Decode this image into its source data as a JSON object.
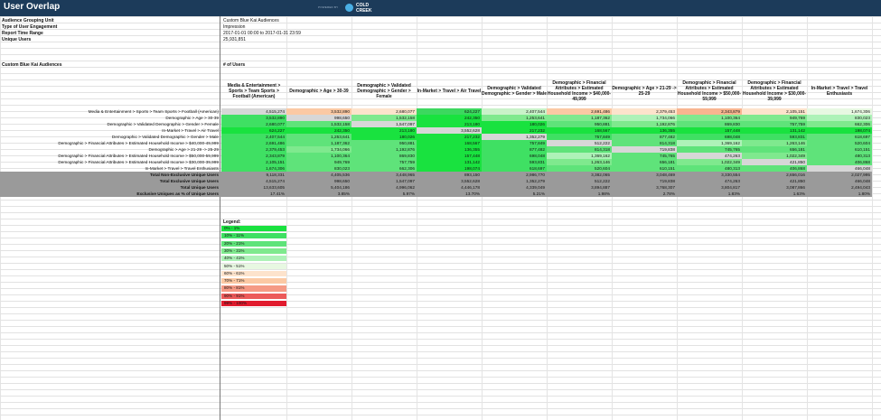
{
  "window": {
    "title": "User Overlap",
    "powered_by": "POWERED BY",
    "brand_line1": "COLD",
    "brand_line2": "CREEK"
  },
  "meta": [
    {
      "label": "Audience Grouping Unit",
      "value": "Custom Blue Kai Audiences"
    },
    {
      "label": "Type of User Engagement",
      "value": "Impression"
    },
    {
      "label": "Report Time Range",
      "value": "2017-01-01 00:00 to 2017-01-31 23:59"
    },
    {
      "label": "Unique Users",
      "value": "25,931,851"
    }
  ],
  "section": {
    "audiences_label": "Custom Blue Kai Audiences",
    "users_label": "# of Users"
  },
  "columns": [
    "Media & Entertainment > Sports > Team Sports > Football (American)",
    "Demographic > Age > 30-39",
    "Demographic > Validated Demographic > Gender > Female",
    "In-Market > Travel > Air Travel",
    "Demographic > Validated Demographic > Gender > Male",
    "Demographic > Financial Attributes > Estimated Household Income > $40,000-49,999",
    "Demographic > Age > 21-29 -> 25-29",
    "Demographic > Financial Attributes > Estimated Household Income > $50,000-59,999",
    "Demographic > Financial Attributes > Estimated Household Income > $30,000-39,999",
    "In-Market > Travel > Travel Enthusiasts"
  ],
  "rows": [
    {
      "label": "Media & Entertainment > Sports > Team Sports > Football (American)",
      "values": [
        "4,515,274",
        "3,532,890",
        "2,680,077",
        "624,227",
        "2,407,544",
        "2,691,486",
        "2,379,453",
        "2,343,879",
        "2,105,151",
        "1,674,306"
      ],
      "colors": [
        "#d7d7d7",
        "#fbc9a4",
        "#fde3cc",
        "#3cd85f",
        "#c9f2c9",
        "#fbc9a4",
        "#fde3cc",
        "#f8b590",
        "#fde3cc",
        "#e8f8e2"
      ]
    },
    {
      "label": "Demographic > Age > 30-39",
      "values": [
        "3,532,890",
        "998,650",
        "1,532,158",
        "242,350",
        "1,253,641",
        "1,187,362",
        "1,734,066",
        "1,100,364",
        "949,769",
        "830,023"
      ],
      "colors": [
        "#3fe063",
        "#d7d7d7",
        "#7fe98e",
        "#19e23f",
        "#7fe98e",
        "#7fe98e",
        "#aef2b8",
        "#7fe98e",
        "#7fe98e",
        "#aef2b8"
      ]
    },
    {
      "label": "Demographic > Validated Demographic > Gender > Female",
      "values": [
        "2,680,077",
        "1,532,158",
        "1,547,097",
        "213,180",
        "180,026",
        "950,881",
        "1,192,876",
        "869,830",
        "757,759",
        "662,306"
      ],
      "colors": [
        "#3fe063",
        "#5fe37a",
        "#d7d7d7",
        "#19e23f",
        "#19e23f",
        "#5fe37a",
        "#7fe98e",
        "#5fe37a",
        "#5fe37a",
        "#7fe98e"
      ]
    },
    {
      "label": "In-Market > Travel > Air Travel",
      "values": [
        "624,227",
        "242,350",
        "213,180",
        "3,552,628",
        "217,232",
        "168,567",
        "136,355",
        "157,448",
        "131,142",
        "198,074"
      ],
      "colors": [
        "#19e23f",
        "#19e23f",
        "#19e23f",
        "#d7d7d7",
        "#19e23f",
        "#19e23f",
        "#19e23f",
        "#19e23f",
        "#19e23f",
        "#19e23f"
      ]
    },
    {
      "label": "Demographic > Validated Demographic > Gender > Male",
      "values": [
        "2,407,544",
        "1,253,641",
        "180,026",
        "217,232",
        "1,352,279",
        "757,849",
        "877,482",
        "698,048",
        "593,831",
        "618,697"
      ],
      "colors": [
        "#3fe063",
        "#5fe37a",
        "#19e23f",
        "#19e23f",
        "#d7d7d7",
        "#3fe063",
        "#5fe37a",
        "#3fe063",
        "#3fe063",
        "#5fe37a"
      ]
    },
    {
      "label": "Demographic > Financial Attributes > Estimated Household Income > $40,000-49,999",
      "values": [
        "2,691,486",
        "1,187,362",
        "950,881",
        "168,567",
        "757,849",
        "512,222",
        "814,318",
        "1,369,162",
        "1,263,146",
        "520,604"
      ],
      "colors": [
        "#3fe063",
        "#5fe37a",
        "#5fe37a",
        "#19e23f",
        "#3fe063",
        "#d7d7d7",
        "#5fe37a",
        "#aef2b8",
        "#7fe98e",
        "#5fe37a"
      ]
    },
    {
      "label": "Demographic > Age > 21-29 -> 25-29",
      "values": [
        "2,379,453",
        "1,734,066",
        "1,192,876",
        "136,355",
        "877,482",
        "814,318",
        "719,838",
        "745,765",
        "656,181",
        "610,151"
      ],
      "colors": [
        "#3fe063",
        "#7fe98e",
        "#5fe37a",
        "#19e23f",
        "#3fe063",
        "#5fe37a",
        "#d7d7d7",
        "#5fe37a",
        "#5fe37a",
        "#5fe37a"
      ]
    },
    {
      "label": "Demographic > Financial Attributes > Estimated Household Income > $50,000-59,999",
      "values": [
        "2,343,879",
        "1,100,364",
        "869,830",
        "157,448",
        "698,048",
        "1,369,162",
        "745,765",
        "474,263",
        "1,022,349",
        "480,313"
      ],
      "colors": [
        "#3fe063",
        "#5fe37a",
        "#5fe37a",
        "#19e23f",
        "#3fe063",
        "#aef2b8",
        "#5fe37a",
        "#d7d7d7",
        "#7fe98e",
        "#5fe37a"
      ]
    },
    {
      "label": "Demographic > Financial Attributes > Estimated Household Income > $30,000-39,999",
      "values": [
        "2,105,151",
        "949,769",
        "757,759",
        "131,142",
        "593,831",
        "1,263,146",
        "656,181",
        "1,022,349",
        "421,850",
        "406,868"
      ],
      "colors": [
        "#3fe063",
        "#5fe37a",
        "#5fe37a",
        "#19e23f",
        "#3fe063",
        "#7fe98e",
        "#5fe37a",
        "#7fe98e",
        "#d7d7d7",
        "#5fe37a"
      ]
    },
    {
      "label": "In-Market > Travel > Travel Enthusiasts",
      "values": [
        "1,674,306",
        "830,023",
        "662,306",
        "198,074",
        "618,697",
        "520,604",
        "610,151",
        "480,313",
        "406,868",
        "466,048"
      ],
      "colors": [
        "#3fe063",
        "#5fe37a",
        "#5fe37a",
        "#19e23f",
        "#3fe063",
        "#5fe37a",
        "#5fe37a",
        "#5fe37a",
        "#5fe37a",
        "#d7d7d7"
      ]
    }
  ],
  "summary": [
    {
      "label": "Total Non-Exclusive Unique Users",
      "values": [
        "9,118,331",
        "4,405,536",
        "3,448,965",
        "893,150",
        "2,986,770",
        "3,382,065",
        "3,048,469",
        "3,330,554",
        "2,656,016",
        "2,027,995"
      ]
    },
    {
      "label": "Total Exclusive Unique Users",
      "values": [
        "4,515,274",
        "998,650",
        "1,547,097",
        "3,552,628",
        "1,352,279",
        "512,222",
        "719,838",
        "474,263",
        "421,850",
        "466,048"
      ]
    },
    {
      "label": "Total Unique Users",
      "values": [
        "13,633,605",
        "5,404,186",
        "4,996,062",
        "4,446,178",
        "4,339,049",
        "3,894,887",
        "3,768,307",
        "3,804,817",
        "3,087,866",
        "2,494,043"
      ]
    },
    {
      "label": "Exclusive Uniques as % of Unique Users",
      "values": [
        "17.41%",
        "3.85%",
        "5.97%",
        "13.70%",
        "5.21%",
        "1.98%",
        "2.78%",
        "1.83%",
        "1.63%",
        "1.80%"
      ]
    }
  ],
  "legend": {
    "title": "Legend:",
    "items": [
      {
        "label": "0% - 1%",
        "color": "#19e23f"
      },
      {
        "label": "10% - 11%",
        "color": "#3fe063"
      },
      {
        "label": "20% - 21%",
        "color": "#5fe37a"
      },
      {
        "label": "30% - 31%",
        "color": "#7fe98e"
      },
      {
        "label": "40% - 41%",
        "color": "#aef2b8"
      },
      {
        "label": "50% - 51%",
        "color": "#e8f8e2"
      },
      {
        "label": "60% - 61%",
        "color": "#fde3cc"
      },
      {
        "label": "70% - 71%",
        "color": "#fbc9a4"
      },
      {
        "label": "80% - 81%",
        "color": "#f59a85"
      },
      {
        "label": "90% - 91%",
        "color": "#ec5a5a"
      },
      {
        "label": "99% - 100%",
        "color": "#e11b2e"
      }
    ]
  }
}
